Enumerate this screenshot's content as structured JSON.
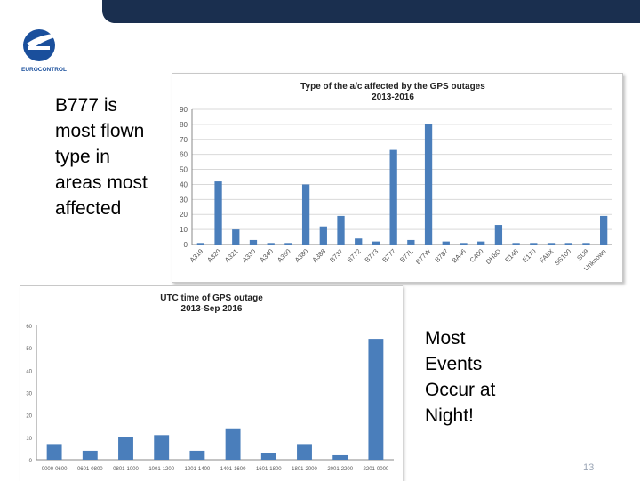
{
  "colors": {
    "bar": "#4a7ebb",
    "grid": "#d9d9d9",
    "header": "#1a2f4f",
    "logo": "#1a4f9c"
  },
  "logo": {
    "text": "EUROCONTROL"
  },
  "callouts": {
    "left": "B777 is most flown type in areas most affected",
    "right": "Most Events Occur at Night!"
  },
  "page_number": "13",
  "chart_data": [
    {
      "type": "bar",
      "title": "Type of the a/c affected by the GPS outages",
      "subtitle": "2013-2016",
      "ylim": [
        0,
        90
      ],
      "yticks": [
        0,
        10,
        20,
        30,
        40,
        50,
        60,
        70,
        80,
        90
      ],
      "grid": true,
      "categories": [
        "A319",
        "A320",
        "A321",
        "A330",
        "A340",
        "A350",
        "A380",
        "A388",
        "B737",
        "B772",
        "B773",
        "B777",
        "B77L",
        "B77W",
        "B787",
        "BA46",
        "C400",
        "DH8D",
        "E145",
        "E170",
        "FA8X",
        "SS100",
        "SU9",
        "Unknown"
      ],
      "values": [
        1,
        42,
        10,
        3,
        1,
        1,
        40,
        12,
        19,
        4,
        2,
        63,
        3,
        80,
        2,
        1,
        2,
        13,
        1,
        1,
        1,
        1,
        1,
        19
      ]
    },
    {
      "type": "bar",
      "title": "UTC time of GPS outage",
      "subtitle": "2013-Sep 2016",
      "ylim": [
        0,
        60
      ],
      "yticks": [
        0,
        10,
        20,
        30,
        40,
        50,
        60
      ],
      "grid": false,
      "categories": [
        "0000-0600",
        "0601-0800",
        "0801-1000",
        "1001-1200",
        "1201-1400",
        "1401-1600",
        "1601-1800",
        "1801-2000",
        "2001-2200",
        "2201-0000"
      ],
      "values": [
        7,
        4,
        10,
        11,
        4,
        14,
        3,
        7,
        2,
        54
      ]
    }
  ]
}
